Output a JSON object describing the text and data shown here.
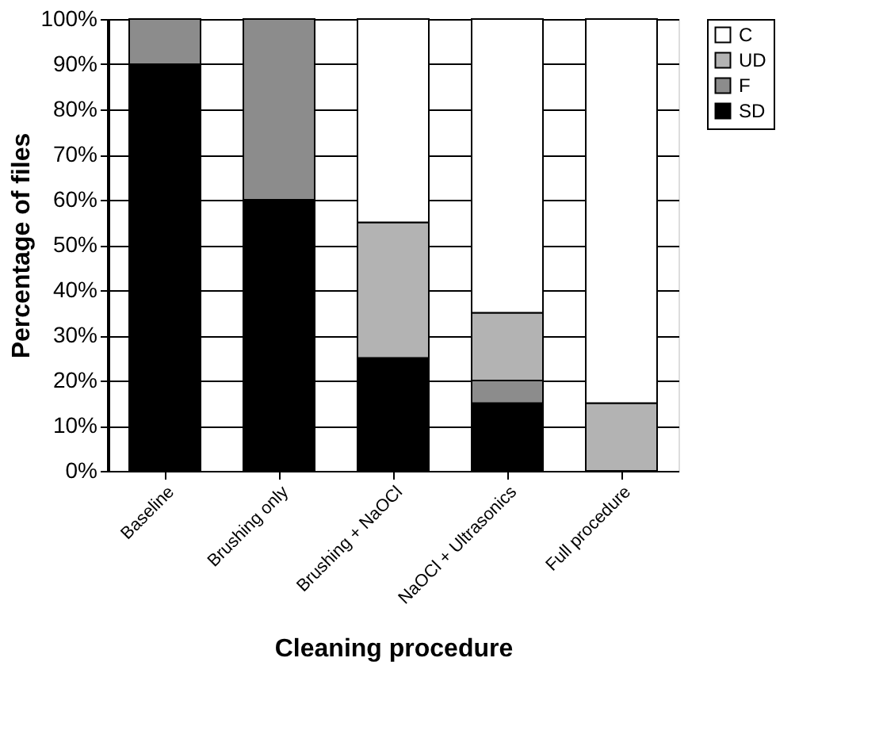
{
  "chart_data": {
    "type": "bar",
    "stacked": true,
    "xlabel": "Cleaning procedure",
    "ylabel": "Percentage of files",
    "categories": [
      "Baseline",
      "Brushing only",
      "Brushing + NaOCl",
      "NaOCl + Ultrasonics",
      "Full procedure"
    ],
    "series": [
      {
        "name": "SD",
        "color": "#000000",
        "values": [
          90,
          60,
          25,
          15,
          0
        ]
      },
      {
        "name": "F",
        "color": "#8c8c8c",
        "values": [
          10,
          40,
          0,
          5,
          0
        ]
      },
      {
        "name": "UD",
        "color": "#b3b3b3",
        "values": [
          0,
          0,
          30,
          15,
          15
        ]
      },
      {
        "name": "C",
        "color": "#ffffff",
        "values": [
          0,
          0,
          45,
          65,
          85
        ]
      }
    ],
    "ylim": [
      0,
      100
    ],
    "yticks": [
      {
        "value": 0,
        "label": "0%"
      },
      {
        "value": 10,
        "label": "10%"
      },
      {
        "value": 20,
        "label": "20%"
      },
      {
        "value": 30,
        "label": "30%"
      },
      {
        "value": 40,
        "label": "40%"
      },
      {
        "value": 50,
        "label": "50%"
      },
      {
        "value": 60,
        "label": "60%"
      },
      {
        "value": 70,
        "label": "70%"
      },
      {
        "value": 80,
        "label": "80%"
      },
      {
        "value": 90,
        "label": "90%"
      },
      {
        "value": 100,
        "label": "100%"
      }
    ],
    "grid": "y",
    "legend": "right"
  }
}
